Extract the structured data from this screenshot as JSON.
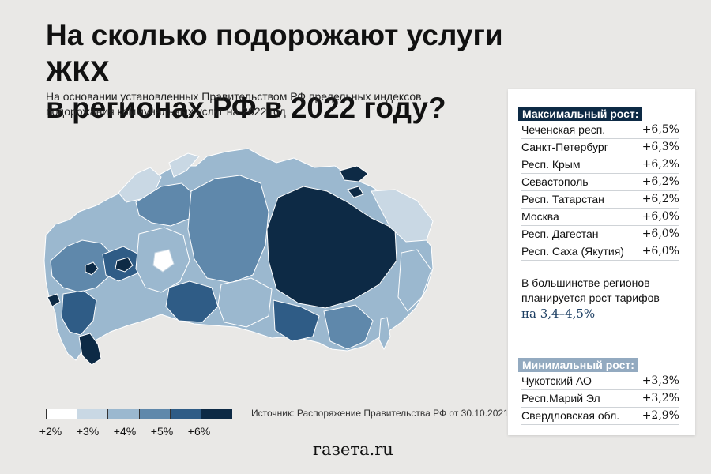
{
  "title": {
    "line1": "На сколько подорожают услуги ЖКХ",
    "line2": "в регионах РФ в 2022 году?"
  },
  "subtitle": {
    "line1": "На основании установленных Правительством РФ предельных индексов",
    "line2": "подорожания коммунальных услуг на 2022 год"
  },
  "colors": {
    "background": "#e9e8e6",
    "scale": [
      "#ffffff",
      "#c9d8e4",
      "#9bb8cf",
      "#5f88ab",
      "#2f5c86",
      "#0d2a45"
    ],
    "card_header_max": "#0d2a45",
    "card_header_min": "#93aac0"
  },
  "legend": {
    "labels": [
      "+2%",
      "+3%",
      "+4%",
      "+5%",
      "+6%"
    ]
  },
  "source": "Источник: Распоряжение Правительства РФ от 30.10.2021",
  "brand": "газета.ru",
  "max_growth": {
    "header": "Максимальный рост:",
    "rows": [
      {
        "name": "Чеченская респ.",
        "value": "+6,5%"
      },
      {
        "name": "Санкт-Петербург",
        "value": "+6,3%"
      },
      {
        "name": "Респ. Крым",
        "value": "+6,2%"
      },
      {
        "name": "Севастополь",
        "value": "+6,2%"
      },
      {
        "name": "Респ. Татарстан",
        "value": "+6,2%"
      },
      {
        "name": "Москва",
        "value": "+6,0%"
      },
      {
        "name": "Респ. Дагестан",
        "value": "+6,0%"
      },
      {
        "name": "Респ. Саха (Якутия)",
        "value": "+6,0%"
      }
    ]
  },
  "note": {
    "line1": "В большинстве регионов",
    "line2": "планируется рост тарифов",
    "line3": "на 3,4–4,5%"
  },
  "min_growth": {
    "header": "Минимальный рост:",
    "rows": [
      {
        "name": "Чукотский АО",
        "value": "+3,3%"
      },
      {
        "name": "Респ.Марий Эл",
        "value": "+3,2%"
      },
      {
        "name": "Свердловская обл.",
        "value": "+2,9%"
      }
    ]
  }
}
